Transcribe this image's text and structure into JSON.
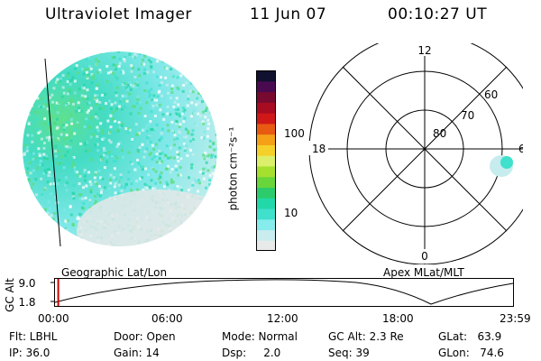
{
  "header": {
    "instrument": "Ultraviolet Imager",
    "date": "11 Jun 07",
    "time": "00:10:27 UT"
  },
  "colorbar": {
    "unit_label": "photon cm⁻²s⁻¹",
    "ticks": [
      "100",
      "10"
    ],
    "colors": [
      "#e8eaea",
      "#c9ecee",
      "#86ecec",
      "#3fe0cc",
      "#22d8a8",
      "#2ccc6c",
      "#68d63a",
      "#a6e02e",
      "#dcef6a",
      "#f5d02a",
      "#f4a018",
      "#e85a12",
      "#d01818",
      "#a80c20",
      "#780a30",
      "#4a0a50",
      "#101030"
    ]
  },
  "geo_panel": {
    "label": "Geographic Lat/Lon"
  },
  "polar_panel": {
    "label": "Apex MLat/MLT",
    "mlt_labels": {
      "top": "12",
      "left": "18",
      "right": "6",
      "bottom": "0"
    },
    "lat_labels": [
      "60",
      "70",
      "80"
    ]
  },
  "timeline": {
    "axis_title": "GC Alt",
    "y_ticks": [
      "9.0",
      "1.8"
    ],
    "x_ticks": [
      "00:00",
      "06:00",
      "12:00",
      "18:00",
      "23:59"
    ],
    "current_fraction": 0.007
  },
  "status": {
    "flt": "Flt: LBHL",
    "ip": "IP: 36.0",
    "door": "Door: Open",
    "gain": "Gain: 14",
    "mode": "Mode: Normal",
    "dsp": "Dsp:     2.0",
    "gcalt": "GC Alt: 2.3 Re",
    "seq": "Seq: 39",
    "glat": "GLat:   63.9",
    "glon": "GLon:   74.6"
  }
}
